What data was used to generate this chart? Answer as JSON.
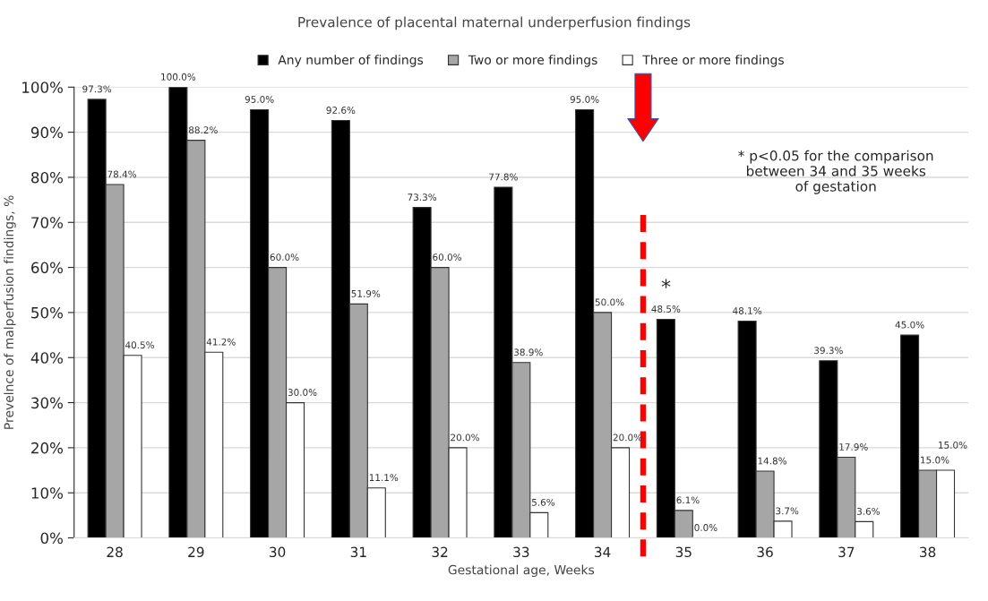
{
  "chart_data": {
    "type": "bar",
    "title": "Prevalence of placental maternal underperfusion findings",
    "xlabel": "Gestational age, Weeks",
    "ylabel": "Prevelnce of malperfusion findings, %",
    "categories": [
      "28",
      "29",
      "30",
      "31",
      "32",
      "33",
      "34",
      "35",
      "36",
      "37",
      "38"
    ],
    "series": [
      {
        "name": "Any number of findings",
        "color": "#000000",
        "values": [
          97.3,
          100.0,
          95.0,
          92.6,
          73.3,
          77.8,
          95.0,
          48.5,
          48.1,
          39.3,
          45.0
        ],
        "value_labels": [
          "97.3%",
          "100.0%",
          "95.0%",
          "92.6%",
          "73.3%",
          "77.8%",
          "95.0%",
          "48.5%",
          "48.1%",
          "39.3%",
          "45.0%"
        ]
      },
      {
        "name": "Two or more findings",
        "color": "#a6a6a6",
        "values": [
          78.4,
          88.2,
          60.0,
          51.9,
          60.0,
          38.9,
          50.0,
          6.1,
          14.8,
          17.9,
          15.0
        ],
        "value_labels": [
          "78.4%",
          "88.2%",
          "60.0%",
          "51.9%",
          "60.0%",
          "38.9%",
          "50.0%",
          "6.1%",
          "14.8%",
          "17.9%",
          "15.0%"
        ]
      },
      {
        "name": "Three or more findings",
        "color": "#ffffff",
        "values": [
          40.5,
          41.2,
          30.0,
          11.1,
          20.0,
          5.6,
          20.0,
          0.0,
          3.7,
          3.6,
          15.0
        ],
        "value_labels": [
          "40.5%",
          "41.2%",
          "30.0%",
          "11.1%",
          "20.0%",
          "5.6%",
          "20.0%",
          "0.0%",
          "3.7%",
          "3.6%",
          "15.0%"
        ]
      }
    ],
    "ylim": [
      0,
      100
    ],
    "yticks": [
      {
        "value": 0,
        "label": "0%"
      },
      {
        "value": 10,
        "label": "10%"
      },
      {
        "value": 20,
        "label": "20%"
      },
      {
        "value": 30,
        "label": "30%"
      },
      {
        "value": 40,
        "label": "40%"
      },
      {
        "value": 50,
        "label": "50%"
      },
      {
        "value": 60,
        "label": "60%"
      },
      {
        "value": 70,
        "label": "70%"
      },
      {
        "value": 80,
        "label": "80%"
      },
      {
        "value": 90,
        "label": "90%"
      },
      {
        "value": 100,
        "label": "100%"
      }
    ],
    "grid": "y",
    "legend": "top",
    "annotations": [
      "*",
      "* p<0.05 for the comparison\nbetween 34 and 35 weeks\nof gestation"
    ]
  }
}
